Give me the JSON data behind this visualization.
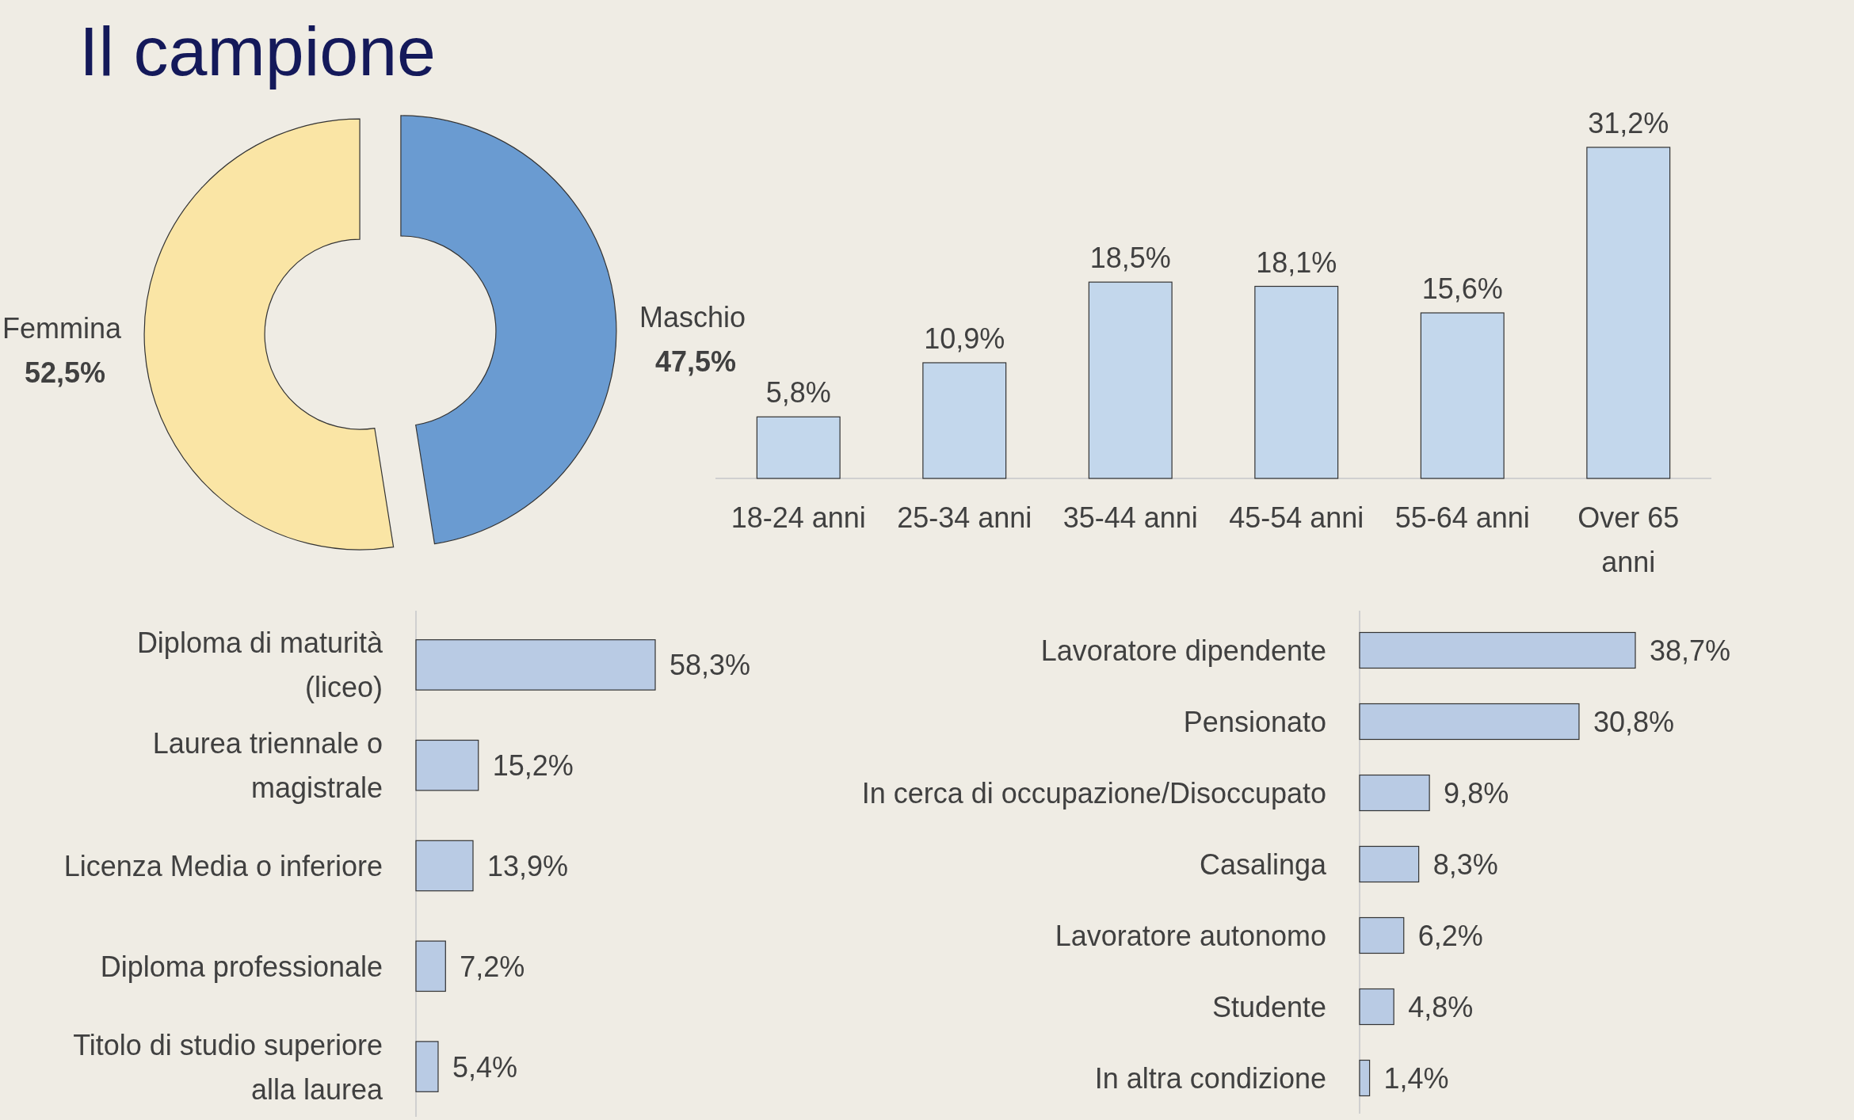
{
  "chart_data": [
    {
      "type": "donut",
      "title": "Il campione",
      "categories": [
        "Maschio",
        "Femmina"
      ],
      "values": [
        47.5,
        52.5
      ],
      "colors": [
        "#6a9bd1",
        "#fae5a5"
      ],
      "value_labels": [
        "47,5%",
        "52,5%"
      ]
    },
    {
      "type": "bar",
      "categories": [
        "18-24 anni",
        "25-34 anni",
        "35-44 anni",
        "45-54 anni",
        "55-64 anni",
        "Over 65 anni"
      ],
      "values": [
        5.8,
        10.9,
        18.5,
        18.1,
        15.6,
        31.2
      ],
      "color": "#c3d7ec",
      "value_labels": [
        "5,8%",
        "10,9%",
        "18,5%",
        "18,1%",
        "15,6%",
        "31,2%"
      ]
    },
    {
      "type": "bar",
      "orientation": "horizontal",
      "categories": [
        "Diploma di maturità (liceo)",
        "Laurea triennale o magistrale",
        "Licenza Media o inferiore",
        "Diploma professionale",
        "Titolo di studio superiore alla laurea"
      ],
      "values": [
        58.3,
        15.2,
        13.9,
        7.2,
        5.4
      ],
      "color": "#b9cbe4",
      "value_labels": [
        "58,3%",
        "15,2%",
        "13,9%",
        "7,2%",
        "5,4%"
      ]
    },
    {
      "type": "bar",
      "orientation": "horizontal",
      "categories": [
        "Lavoratore dipendente",
        "Pensionato",
        "In cerca di occupazione/Disoccupato",
        "Casalinga",
        "Lavoratore autonomo",
        "Studente",
        "In altra condizione"
      ],
      "values": [
        38.7,
        30.8,
        9.8,
        8.3,
        6.2,
        4.8,
        1.4
      ],
      "color": "#b9cbe4",
      "value_labels": [
        "38,7%",
        "30,8%",
        "9,8%",
        "8,3%",
        "6,2%",
        "4,8%",
        "1,4%"
      ]
    }
  ]
}
